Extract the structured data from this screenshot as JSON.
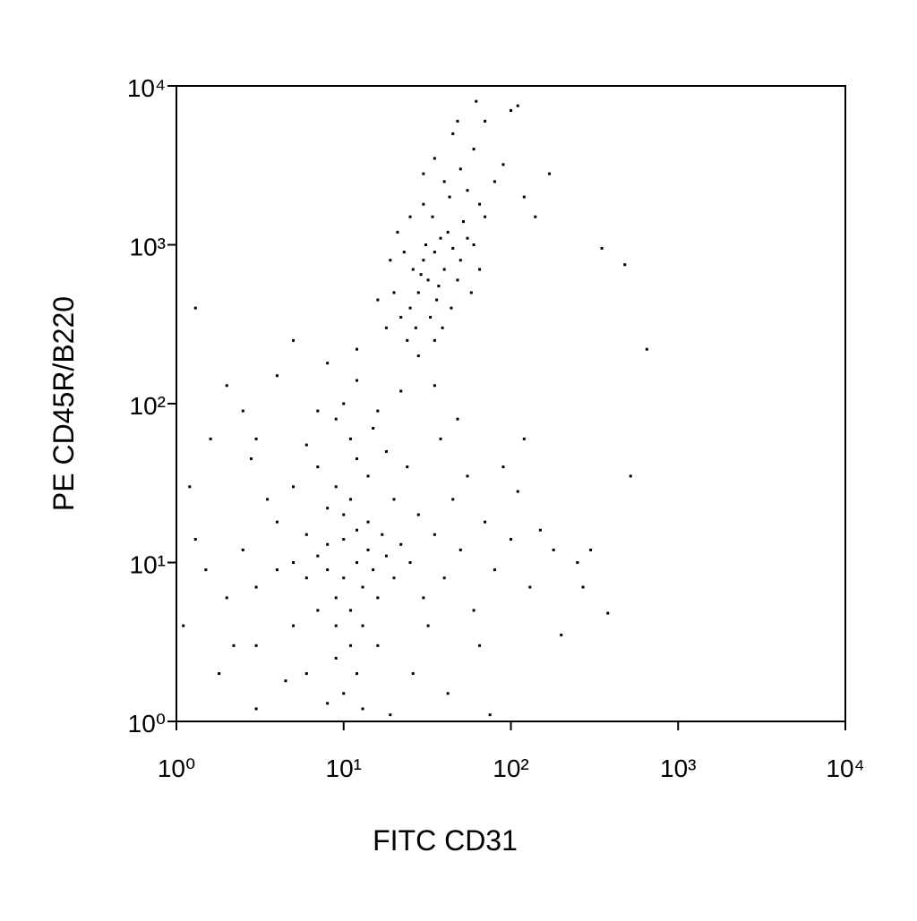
{
  "chart_data": {
    "type": "scatter",
    "xlabel": "FITC CD31",
    "ylabel": "PE CD45R/B220",
    "x_log": true,
    "y_log": true,
    "color": "#000000",
    "xlim": [
      1,
      10000
    ],
    "ylim": [
      1,
      10000
    ],
    "xticks": [
      {
        "value": 1,
        "label": "10⁰"
      },
      {
        "value": 10,
        "label": "10¹"
      },
      {
        "value": 100,
        "label": "10²"
      },
      {
        "value": 1000,
        "label": "10³"
      },
      {
        "value": 10000,
        "label": "10⁴"
      }
    ],
    "yticks": [
      {
        "value": 1,
        "label": "10⁰"
      },
      {
        "value": 10,
        "label": "10¹"
      },
      {
        "value": 100,
        "label": "10²"
      },
      {
        "value": 1000,
        "label": "10³"
      },
      {
        "value": 10000,
        "label": "10⁴"
      }
    ],
    "x": [
      10,
      12,
      9,
      14,
      11,
      8,
      13,
      10,
      7,
      15,
      11,
      9,
      12,
      6,
      16,
      10,
      13,
      8,
      14,
      9,
      5,
      18,
      11,
      7,
      20,
      12,
      6,
      17,
      4,
      22,
      10,
      9,
      3,
      25,
      14,
      5,
      8,
      30,
      2.5,
      12,
      16,
      6,
      35,
      3,
      20,
      11,
      40,
      2,
      7,
      28,
      13,
      4,
      50,
      1.5,
      18,
      9,
      60,
      2.2,
      24,
      45,
      15,
      1.3,
      70,
      5,
      32,
      3.5,
      80,
      26,
      1.8,
      100,
      10,
      55,
      6,
      130,
      19,
      1.2,
      38,
      150,
      8,
      2.8,
      65,
      110,
      16,
      4.5,
      180,
      42,
      22,
      90,
      12,
      250,
      3,
      48,
      7,
      200,
      75,
      1.1,
      120,
      35,
      1.6,
      30,
      35,
      28,
      40,
      25,
      32,
      38,
      27,
      45,
      33,
      22,
      36,
      42,
      29,
      50,
      24,
      31,
      37,
      20,
      55,
      26,
      44,
      34,
      18,
      48,
      23,
      60,
      39,
      30,
      16,
      52,
      28,
      65,
      21,
      43,
      35,
      70,
      19,
      58,
      25,
      40,
      50,
      60,
      45,
      55,
      35,
      70,
      62,
      30,
      80,
      100,
      110,
      48,
      90,
      65,
      120,
      140,
      170,
      350,
      480,
      650,
      520,
      380,
      300,
      270,
      1.3,
      2,
      5,
      8,
      3,
      12,
      4,
      2.5
    ],
    "values": [
      8,
      10,
      6,
      12,
      5,
      9,
      7,
      14,
      11,
      9,
      3,
      4,
      16,
      8,
      6,
      20,
      4,
      13,
      18,
      2.5,
      10,
      11,
      25,
      5,
      8,
      2,
      15,
      15,
      9,
      13,
      1.5,
      30,
      7,
      10,
      35,
      4,
      22,
      6,
      12,
      45,
      3,
      2,
      15,
      3,
      25,
      60,
      8,
      6,
      40,
      20,
      1.2,
      18,
      12,
      9,
      50,
      80,
      5,
      3,
      40,
      25,
      70,
      14,
      18,
      30,
      4,
      25,
      9,
      2,
      2,
      14,
      100,
      35,
      55,
      7,
      1.1,
      30,
      60,
      16,
      1.3,
      45,
      3,
      28,
      90,
      1.8,
      12,
      1.5,
      120,
      40,
      140,
      10,
      1.2,
      80,
      90,
      3.5,
      1.1,
      4,
      60,
      130,
      60,
      800,
      900,
      500,
      700,
      400,
      600,
      1100,
      300,
      950,
      350,
      350,
      450,
      1200,
      650,
      800,
      250,
      1000,
      550,
      500,
      1100,
      700,
      400,
      1500,
      300,
      600,
      900,
      1000,
      300,
      1800,
      450,
      1400,
      200,
      700,
      1200,
      2000,
      250,
      1500,
      800,
      500,
      1500,
      2500,
      3000,
      4000,
      5000,
      2200,
      3500,
      6000,
      8000,
      2800,
      2500,
      7000,
      7500,
      6000,
      3200,
      1800,
      2000,
      1500,
      2800,
      950,
      750,
      220,
      35,
      4.8,
      12,
      7,
      400,
      130,
      250,
      180,
      60,
      220,
      150,
      90
    ]
  }
}
